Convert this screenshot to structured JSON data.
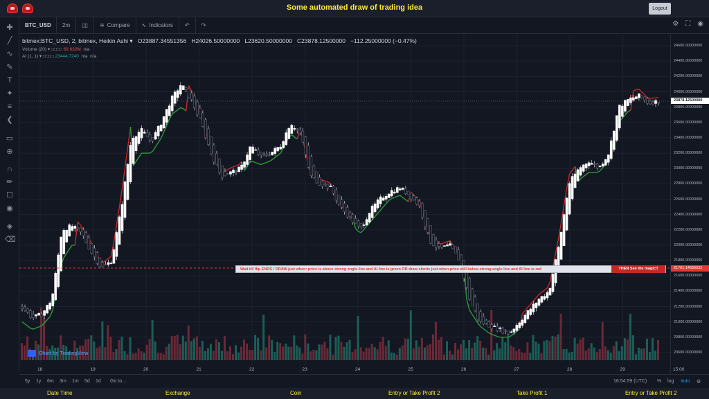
{
  "app": {
    "title": "Some automated draw of trading idea",
    "logout_label": "Logout"
  },
  "toolbar": {
    "symbol": "BTC_USD",
    "interval": "2m",
    "compare_label": "Compare",
    "indicators_label": "Indicators"
  },
  "legend": {
    "main_title": "bitmex:BTC_USD, 2, bitmex, Heikin Ashi",
    "open": "O23887.34551356",
    "high": "H24026.50000000",
    "low": "L23620.50000000",
    "close": "C23878.12500000",
    "change": "−112.25000000 (−0.47%)",
    "volume_label": "Volume (20)",
    "volume_value": "60.632M",
    "volume_na": "n/a",
    "ai_label": "AI (1, 1)",
    "ai_value": "23444.7240",
    "ai_na1": "n/a",
    "ai_na2": "n/a"
  },
  "price_axis": {
    "labels": [
      "24600.00000000",
      "24400.00000000",
      "24200.00000000",
      "24000.00000000",
      "23800.00000000",
      "23600.00000000",
      "23400.00000000",
      "23200.00000000",
      "23000.00000000",
      "22800.00000000",
      "22600.00000000",
      "22400.00000000",
      "22200.00000000",
      "22000.00000000",
      "21800.00000000",
      "21600.00000000",
      "21400.00000000",
      "21200.00000000",
      "21000.00000000",
      "20800.00000000",
      "20600.00000000"
    ],
    "current": "23878.12500000",
    "line_price": "21701.14656032"
  },
  "time_axis": {
    "labels": [
      "18",
      "19",
      "20",
      "21",
      "22",
      "23",
      "24",
      "25",
      "26",
      "27",
      "28",
      "29",
      "15:00"
    ]
  },
  "banner": {
    "text": "Wait till flip ENDS  !   DRAW just when:  price is above strong angle line and AI line is green        OR        draw shorts just when price still below strong angle line and AI line is red",
    "end_label": "THEN See the magic!!"
  },
  "watermark": "Chart by TradingView",
  "bottom_bar": {
    "ranges": [
      "5y",
      "1y",
      "6m",
      "3m",
      "1m",
      "5d",
      "1d"
    ],
    "goto_label": "Go to...",
    "clock": "16:54:59 (UTC)",
    "percent_label": "%",
    "log_label": "log",
    "auto_label": "auto"
  },
  "footer": {
    "items": [
      "Date Time",
      "Exchange",
      "Coin",
      "Entry or Take Profit 2",
      "Take Profit 1",
      "Entry or Take Profit 2"
    ]
  },
  "chart_data": {
    "type": "candlestick",
    "title": "bitmex:BTC_USD, 2, bitmex, Heikin Ashi",
    "ylim": [
      20500,
      24700
    ],
    "x_ticks": [
      "18",
      "19",
      "20",
      "21",
      "22",
      "23",
      "24",
      "25",
      "26",
      "27",
      "28",
      "29",
      "15:00"
    ],
    "close_series": [
      21200,
      21050,
      21100,
      21300,
      22200,
      22250,
      22150,
      21900,
      21700,
      21800,
      22500,
      23400,
      23500,
      23350,
      23600,
      23900,
      24100,
      23900,
      23600,
      23200,
      22900,
      22950,
      23000,
      23300,
      23150,
      23200,
      23300,
      23600,
      23450,
      22900,
      22800,
      22750,
      22500,
      22350,
      22200,
      22450,
      22600,
      22700,
      22750,
      22650,
      22500,
      22050,
      21950,
      22000,
      21800,
      21300,
      21000,
      20950,
      20900,
      20850,
      21000,
      21150,
      21300,
      21400,
      22000,
      22800,
      23000,
      23100,
      23000,
      23200,
      23800,
      23900,
      23950,
      23850,
      23878
    ],
    "ai_line": [
      21000,
      20900,
      20950,
      21100,
      21800,
      22000,
      22000,
      21700,
      21600,
      21700,
      22200,
      23000,
      23200,
      23200,
      23400,
      23700,
      23800,
      23700,
      23500,
      23100,
      22850,
      22850,
      22900,
      23100,
      23050,
      23100,
      23200,
      23450,
      23350,
      22850,
      22700,
      22650,
      22450,
      22300,
      22150,
      22300,
      22450,
      22600,
      22650,
      22550,
      22400,
      21950,
      21850,
      21900,
      21650,
      21150,
      20950,
      20850,
      20800,
      20800,
      20900,
      21050,
      21200,
      21300,
      21800,
      22600,
      22850,
      22950,
      22950,
      23100,
      23600,
      23750,
      23800,
      23750,
      23800
    ],
    "horizontal_line": 21701.14656032
  }
}
